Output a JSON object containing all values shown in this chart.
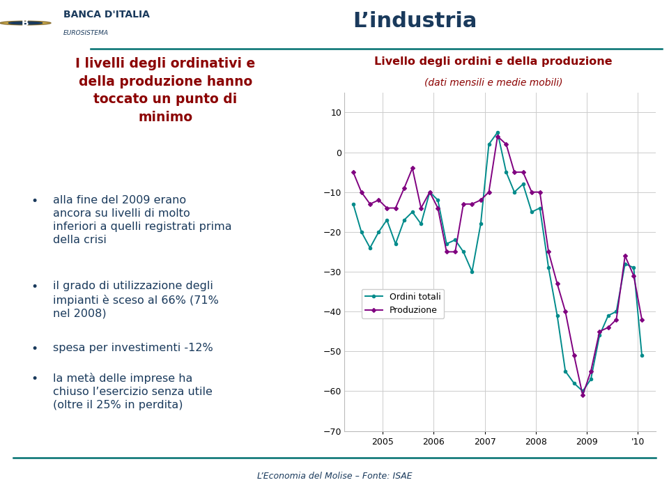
{
  "title": "Livello degli ordini e della produzione",
  "subtitle": "(dati mensili e medie mobili)",
  "title_color": "#8B0000",
  "subtitle_color": "#8B0000",
  "background_color": "#FFFFFF",
  "chart_bg_color": "#FFFFFF",
  "grid_color": "#CCCCCC",
  "ylim": [
    -70,
    15
  ],
  "yticks": [
    10,
    0,
    -10,
    -20,
    -30,
    -40,
    -50,
    -60,
    -70
  ],
  "ordini_color": "#008B8B",
  "produzione_color": "#800080",
  "legend_label_ordini": "Ordini totali",
  "legend_label_produzione": "Produzione",
  "left_title": "I livelli degli ordinativi e\ndella produzione hanno\ntoccato un punto di\nminimo",
  "left_title_color": "#8B0000",
  "bullet1": "alla fine del 2009 erano\nancora su livelli di molto\ninferiori a quelli registrati prima\ndella crisi",
  "bullet2": "il grado di utilizzazione degli\nimpianti è sceso al 66% (71%\nnel 2008)",
  "bullet3": "spesa per investimenti -12%",
  "bullet4": "la metà delle imprese ha\nchiuso l’esercizio senza utile\n(oltre il 25% in perdita)",
  "footer": "L’Economia del Molise – Fonte: ISAE",
  "page_title": "L’industria",
  "ordini_x": [
    2004.42,
    2004.58,
    2004.75,
    2004.92,
    2005.08,
    2005.25,
    2005.42,
    2005.58,
    2005.75,
    2005.92,
    2006.08,
    2006.25,
    2006.42,
    2006.58,
    2006.75,
    2006.92,
    2007.08,
    2007.25,
    2007.42,
    2007.58,
    2007.75,
    2007.92,
    2008.08,
    2008.25,
    2008.42,
    2008.58,
    2008.75,
    2008.92,
    2009.08,
    2009.25,
    2009.42,
    2009.58,
    2009.75,
    2009.92,
    2010.08
  ],
  "ordini_y": [
    -13,
    -20,
    -24,
    -20,
    -17,
    -23,
    -17,
    -15,
    -18,
    -10,
    -12,
    -23,
    -22,
    -25,
    -30,
    -18,
    2,
    5,
    -5,
    -10,
    -8,
    -15,
    -14,
    -29,
    -41,
    -55,
    -58,
    -60,
    -57,
    -46,
    -41,
    -40,
    -28,
    -29,
    -51
  ],
  "produzione_x": [
    2004.42,
    2004.58,
    2004.75,
    2004.92,
    2005.08,
    2005.25,
    2005.42,
    2005.58,
    2005.75,
    2005.92,
    2006.08,
    2006.25,
    2006.42,
    2006.58,
    2006.75,
    2006.92,
    2007.08,
    2007.25,
    2007.42,
    2007.58,
    2007.75,
    2007.92,
    2008.08,
    2008.25,
    2008.42,
    2008.58,
    2008.75,
    2008.92,
    2009.08,
    2009.25,
    2009.42,
    2009.58,
    2009.75,
    2009.92,
    2010.08
  ],
  "produzione_y": [
    -5,
    -10,
    -13,
    -12,
    -14,
    -14,
    -9,
    -4,
    -14,
    -10,
    -14,
    -25,
    -25,
    -13,
    -13,
    -12,
    -10,
    4,
    2,
    -5,
    -5,
    -10,
    -10,
    -25,
    -33,
    -40,
    -51,
    -61,
    -55,
    -45,
    -44,
    -42,
    -26,
    -31,
    -42
  ],
  "banca_italia_text": "BANCA D'ITALIA",
  "eurosistema_text": "EUROSISTEMA",
  "teal_color": "#007070",
  "navy_color": "#1a3a5c"
}
